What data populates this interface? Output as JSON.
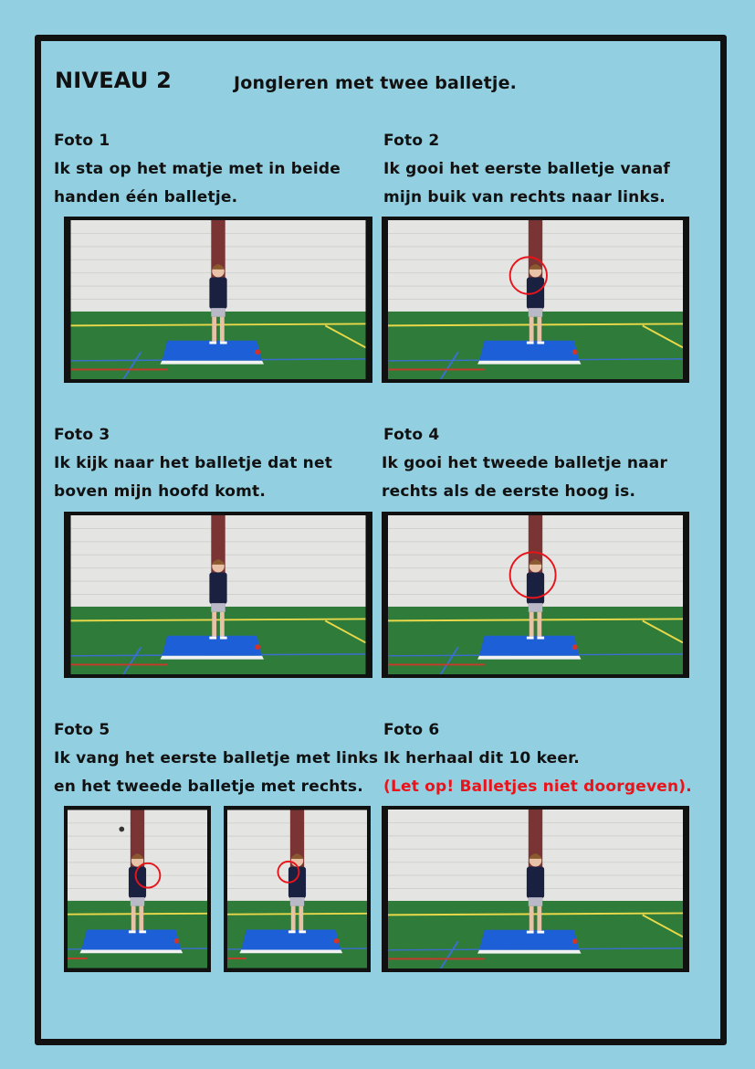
{
  "header": {
    "level": "NIVEAU 2",
    "title": "Jongleren met twee balletje."
  },
  "photos": [
    {
      "label": "Foto 1",
      "lines": [
        "Ik sta op het matje met in beide",
        "handen één balletje."
      ]
    },
    {
      "label": "Foto 2",
      "lines": [
        "Ik gooi het eerste balletje vanaf",
        "mijn buik van rechts naar links."
      ]
    },
    {
      "label": "Foto 3",
      "lines": [
        "Ik kijk naar het balletje dat net",
        "boven mijn hoofd komt."
      ]
    },
    {
      "label": "Foto 4",
      "lines": [
        "Ik gooi het tweede balletje naar",
        "rechts als de eerste hoog is."
      ]
    },
    {
      "label": "Foto 5",
      "lines": [
        "Ik vang het eerste balletje met links",
        "en het tweede balletje met rechts."
      ]
    },
    {
      "label": "Foto 6",
      "lines": [
        "Ik herhaal dit 10 keer.",
        "(Let op! Balletjes niet doorgeven)."
      ]
    }
  ]
}
